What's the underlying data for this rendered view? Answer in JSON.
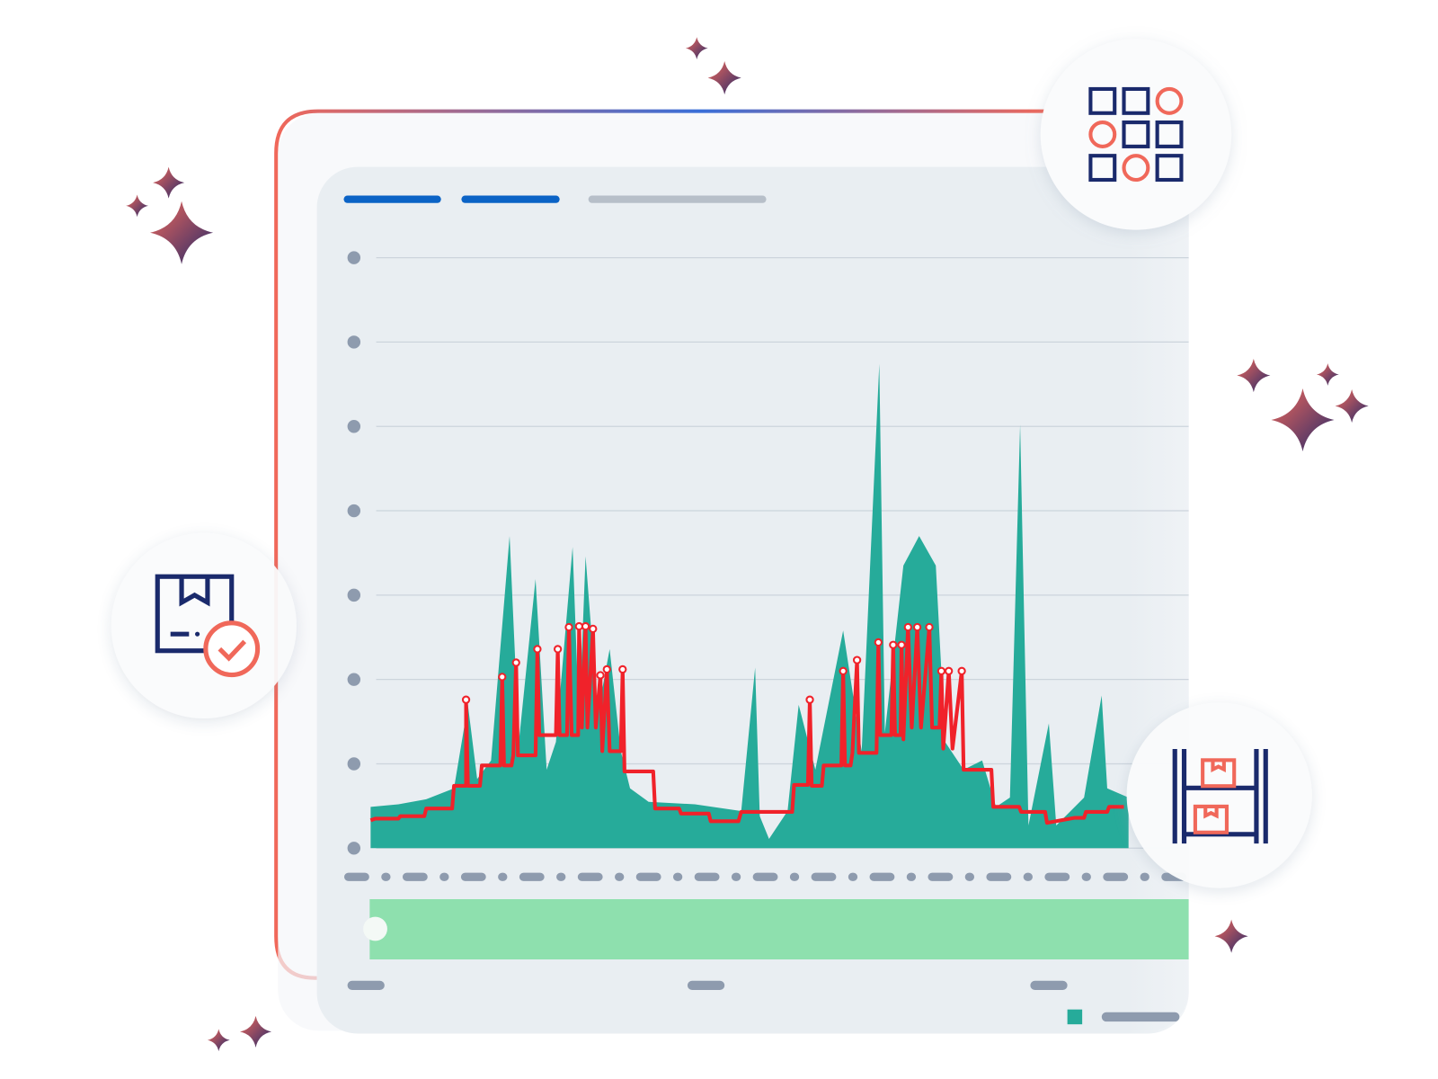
{
  "chart_data": {
    "type": "area",
    "xlim": [
      0,
      883
    ],
    "ylim": [
      0,
      7
    ],
    "yticks": [
      0,
      1,
      2,
      3,
      4,
      5,
      6,
      7
    ],
    "grid": true,
    "series": [
      {
        "color": "#26ab9a",
        "x": [
          0,
          30,
          60,
          90,
          105,
          115,
          130,
          150,
          160,
          178,
          190,
          200,
          218,
          225,
          232,
          245,
          258,
          270,
          280,
          300,
          350,
          400,
          415,
          420,
          430,
          450,
          462,
          480,
          510,
          530,
          549,
          555,
          575,
          592,
          610,
          620,
          640,
          660,
          675,
          690,
          701,
          710,
          732,
          740,
          770,
          789,
          795,
          818
        ],
        "values": [
          0.49,
          0.52,
          0.58,
          0.71,
          1.7,
          0.82,
          1.04,
          3.7,
          1.26,
          3.19,
          0.93,
          1.26,
          3.57,
          1.48,
          3.46,
          1.59,
          2.36,
          1.15,
          0.71,
          0.55,
          0.52,
          0.44,
          2.14,
          0.38,
          0.11,
          0.44,
          1.7,
          0.93,
          2.58,
          1.15,
          5.74,
          1.37,
          3.35,
          3.7,
          3.35,
          1.26,
          0.93,
          1.04,
          0.49,
          0.6,
          5.02,
          0.27,
          1.48,
          0.27,
          0.6,
          1.81,
          0.71,
          0.6
        ]
      },
      {
        "color": "#f0222a",
        "x": [
          0,
          5,
          30,
          32,
          58,
          60,
          88,
          90,
          103,
          103,
          105,
          118,
          120,
          140,
          142,
          144,
          152,
          154,
          157,
          159,
          178,
          180,
          182,
          200,
          202,
          204,
          212,
          214,
          217,
          224,
          225,
          228,
          232,
          234,
          240,
          243,
          248,
          250,
          255,
          258,
          270,
          272,
          274,
          305,
          307,
          333,
          335,
          365,
          367,
          397,
          400,
          455,
          457,
          472,
          474,
          476,
          487,
          489,
          508,
          510,
          512,
          518,
          520,
          525,
          527,
          546,
          548,
          550,
          562,
          564,
          566,
          572,
          573,
          575,
          580,
          584,
          590,
          594,
          603,
          606,
          614,
          616,
          618,
          624,
          628,
          638,
          640,
          670,
          672,
          700,
          702,
          728,
          730,
          760,
          770,
          772,
          795,
          797,
          813
        ],
        "values": [
          0.33,
          0.35,
          0.35,
          0.38,
          0.38,
          0.47,
          0.47,
          0.74,
          0.74,
          1.76,
          0.74,
          0.74,
          0.98,
          0.98,
          2.03,
          0.98,
          0.98,
          1.1,
          2.2,
          1.1,
          1.1,
          2.36,
          1.34,
          1.34,
          2.36,
          1.34,
          1.34,
          2.62,
          1.34,
          1.34,
          2.63,
          1.43,
          2.63,
          1.43,
          2.6,
          1.43,
          2.05,
          1.15,
          2.12,
          1.15,
          1.15,
          2.12,
          0.91,
          0.91,
          0.47,
          0.47,
          0.41,
          0.41,
          0.32,
          0.32,
          0.43,
          0.43,
          0.75,
          0.75,
          1.76,
          0.74,
          0.74,
          0.98,
          0.98,
          2.1,
          0.98,
          0.98,
          1.13,
          2.23,
          1.13,
          1.13,
          2.44,
          1.34,
          1.34,
          2.41,
          1.34,
          1.34,
          2.41,
          1.29,
          2.62,
          1.43,
          2.62,
          1.43,
          2.62,
          1.43,
          1.43,
          2.1,
          1.18,
          2.1,
          1.18,
          2.1,
          0.93,
          0.93,
          0.49,
          0.49,
          0.43,
          0.43,
          0.3,
          0.36,
          0.36,
          0.43,
          0.43,
          0.49,
          0.49
        ]
      }
    ]
  }
}
